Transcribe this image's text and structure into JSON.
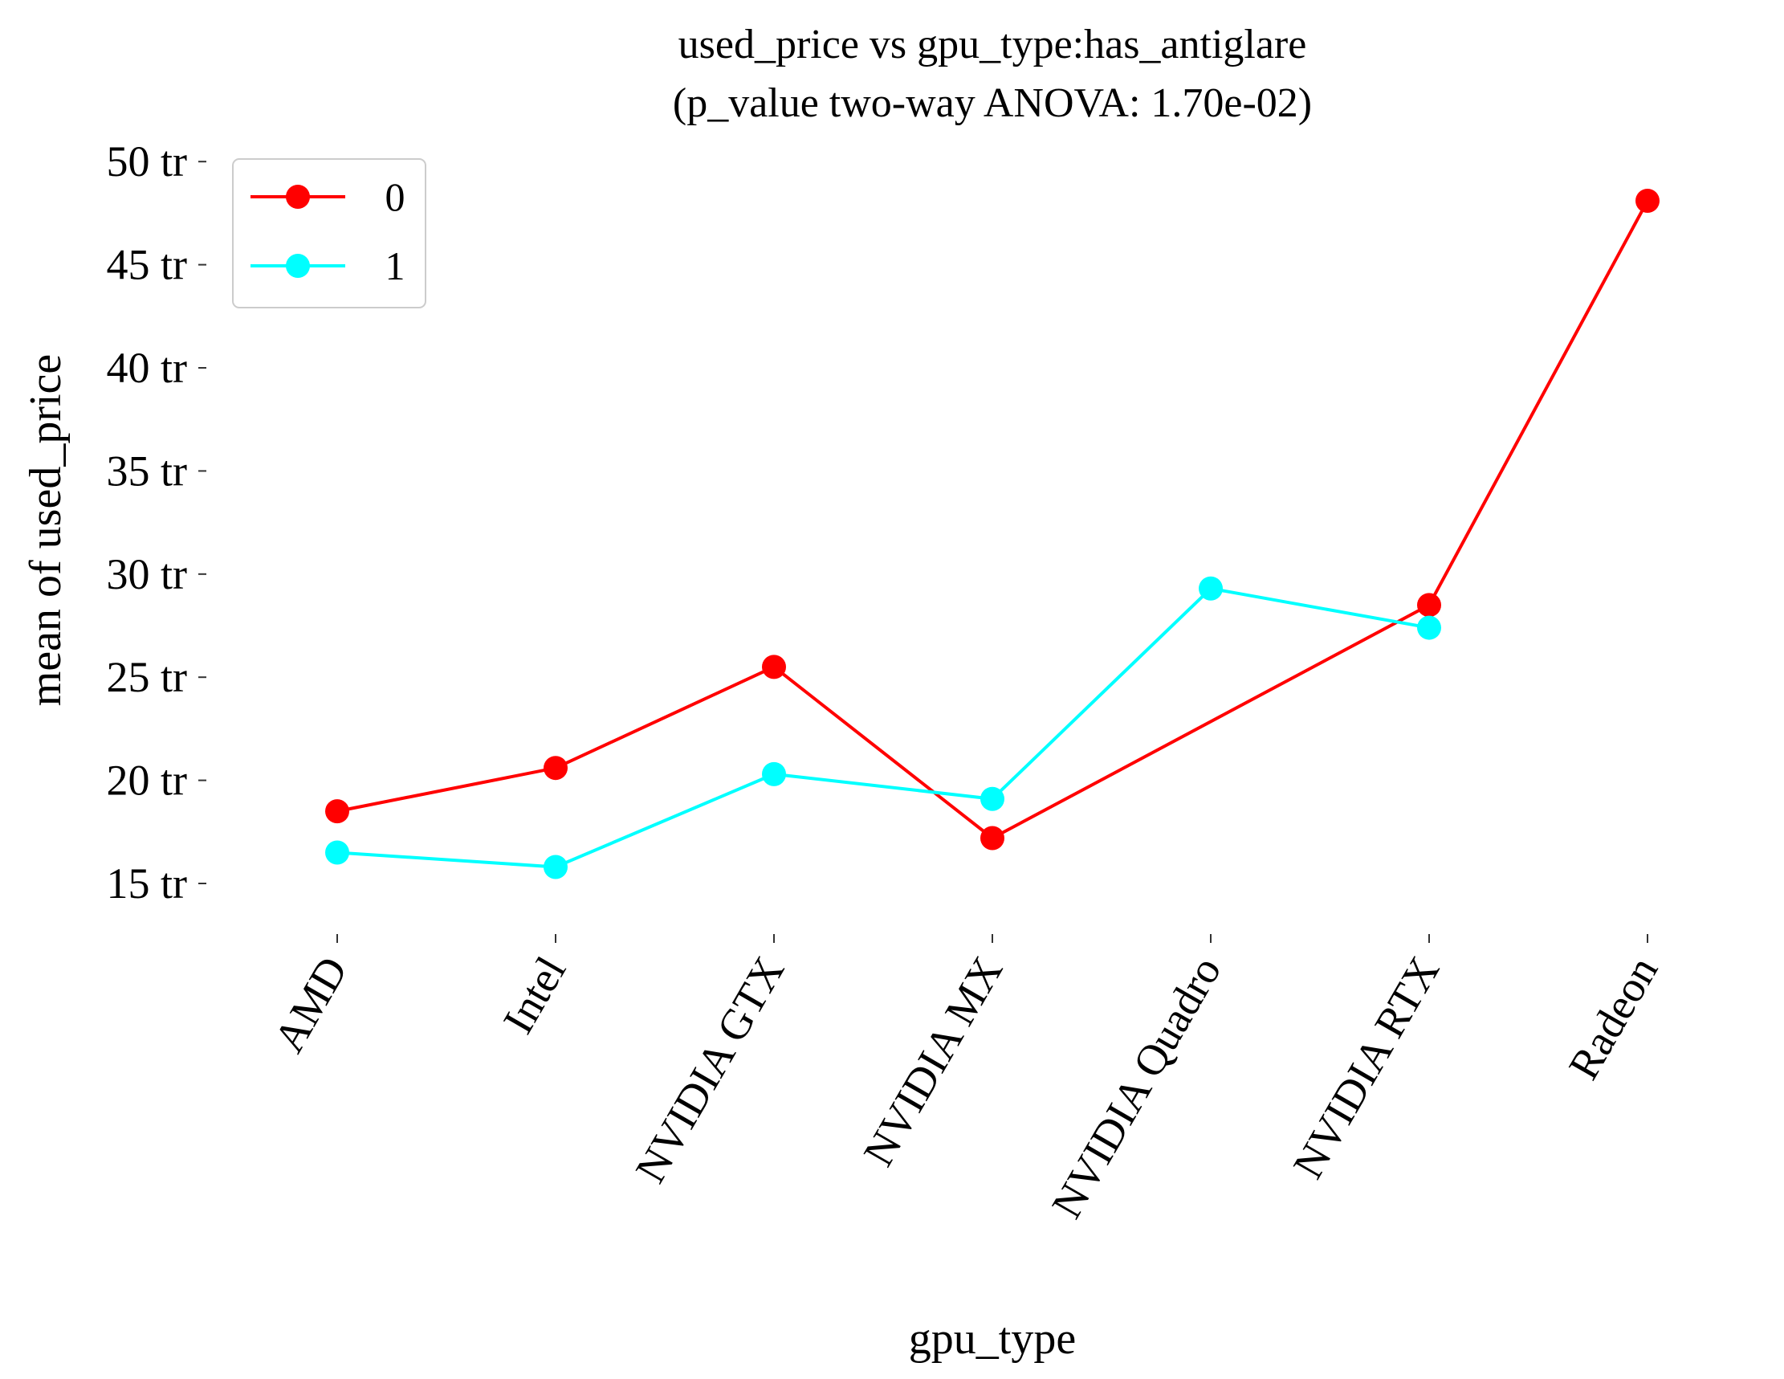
{
  "chart_data": {
    "type": "line",
    "title": "used_price vs gpu_type:has_antiglare",
    "subtitle": "(p_value two-way ANOVA: 1.70e-02)",
    "xlabel": "gpu_type",
    "ylabel": "mean of used_price",
    "categories": [
      "AMD",
      "Intel",
      "NVIDIA GTX",
      "NVIDIA MX",
      "NVIDIA Quadro",
      "NVIDIA RTX",
      "Radeon"
    ],
    "yticks": [
      {
        "value": 15,
        "label": "15 tr"
      },
      {
        "value": 20,
        "label": "20 tr"
      },
      {
        "value": 25,
        "label": "25 tr"
      },
      {
        "value": 30,
        "label": "30 tr"
      },
      {
        "value": 35,
        "label": "35 tr"
      },
      {
        "value": 40,
        "label": "40 tr"
      },
      {
        "value": 45,
        "label": "45 tr"
      },
      {
        "value": 50,
        "label": "50 tr"
      }
    ],
    "ylim": [
      12.6,
      50.4
    ],
    "grid": false,
    "legend_position": "top-left",
    "series": [
      {
        "name": "0",
        "color": "#ff0000",
        "values": [
          18.5,
          20.6,
          25.5,
          17.2,
          null,
          28.5,
          48.1
        ]
      },
      {
        "name": "1",
        "color": "#00ffff",
        "values": [
          16.5,
          15.8,
          20.3,
          19.1,
          29.3,
          27.4,
          null
        ]
      }
    ]
  }
}
